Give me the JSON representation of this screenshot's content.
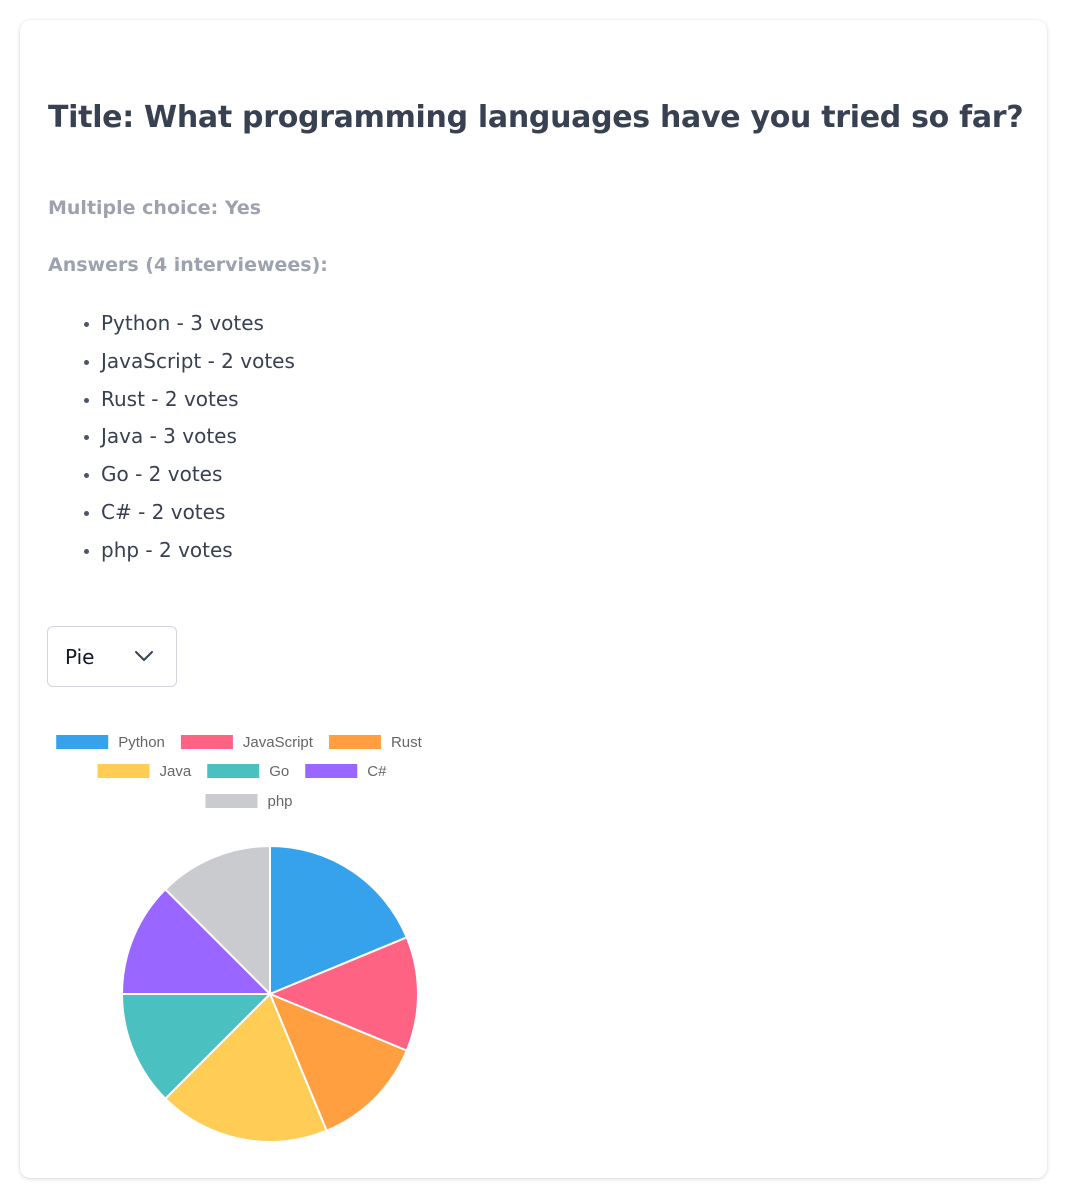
{
  "question": {
    "title": "Title: What programming languages have you tried so far?",
    "multiple_choice": "Multiple choice: Yes",
    "answers_heading": "Answers (4 interviewees):",
    "answers": [
      "Python - 3 votes",
      "JavaScript - 2 votes",
      "Rust - 2 votes",
      "Java - 3 votes",
      "Go - 2 votes",
      "C# - 2 votes",
      "php - 2 votes"
    ]
  },
  "chart_type_select": {
    "selected": "Pie",
    "icon": "chevron-down-icon"
  },
  "chart_data": {
    "type": "pie",
    "categories": [
      "Python",
      "JavaScript",
      "Rust",
      "Java",
      "Go",
      "C#",
      "php"
    ],
    "values": [
      3,
      2,
      2,
      3,
      2,
      2,
      2
    ],
    "colors": [
      "#36a2eb",
      "#ff6384",
      "#ff9f40",
      "#ffcd56",
      "#4bc0c0",
      "#9966ff",
      "#c9cbcf"
    ],
    "legend_position": "top"
  }
}
